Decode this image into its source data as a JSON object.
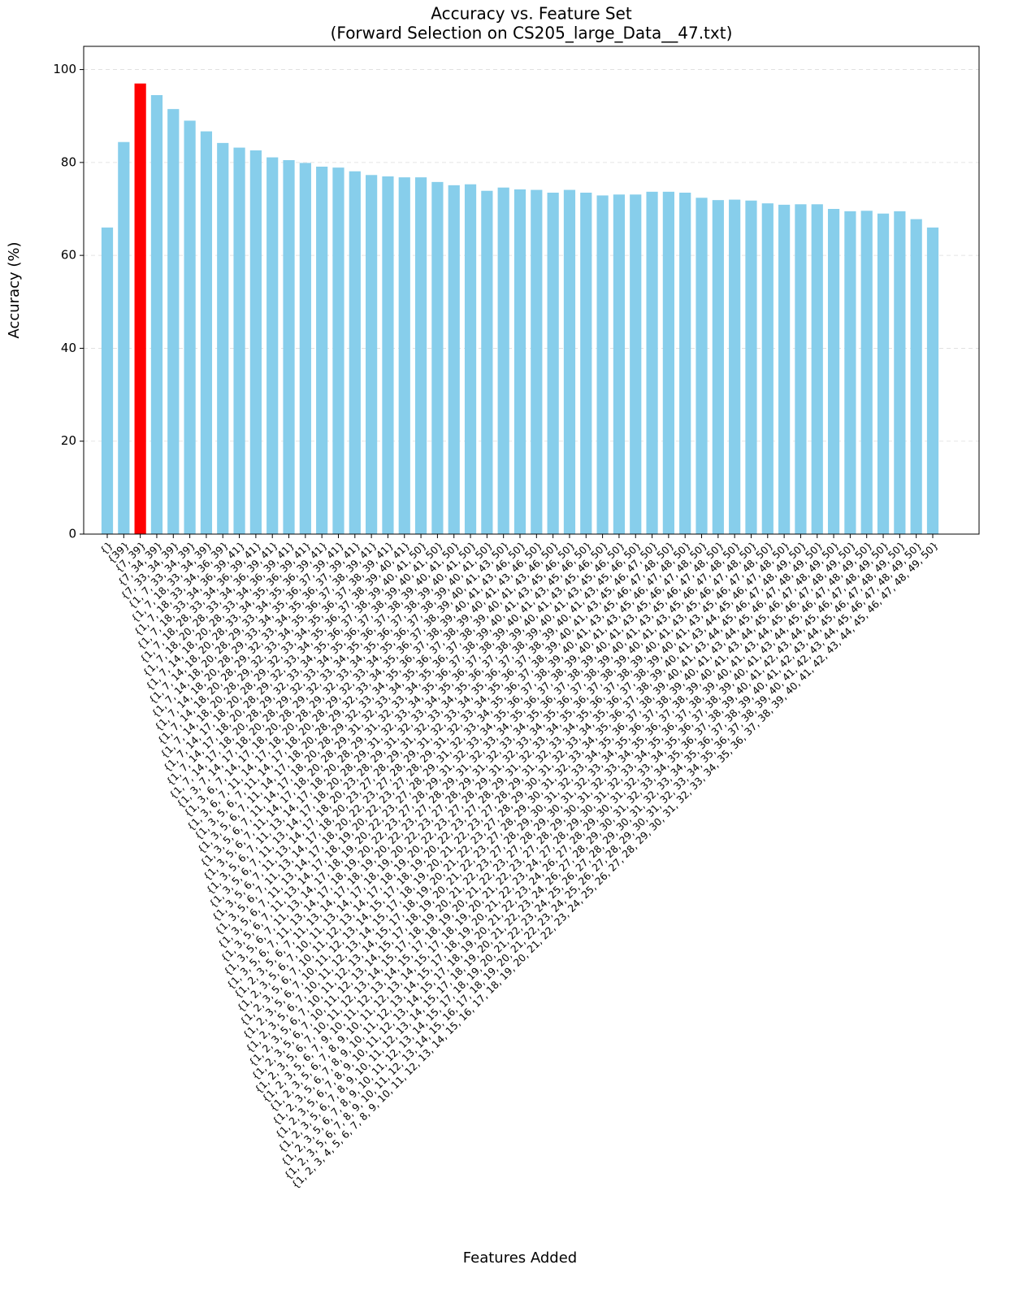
{
  "chart_data": {
    "type": "bar",
    "title": "Accuracy vs. Feature Set",
    "subtitle": "(Forward Selection on CS205_large_Data__47.txt)",
    "xlabel": "Features Added",
    "ylabel": "Accuracy (%)",
    "ylim": [
      0,
      105
    ],
    "yticks": [
      0,
      20,
      40,
      60,
      80,
      100
    ],
    "grid": true,
    "categories": [
      "{}",
      "{39}",
      "{7, 39}",
      "{7, 34, 39}",
      "{7, 33, 34, 39}",
      "{1, 7, 33, 34, 39}",
      "{1, 7, 18, 33, 34, 39}",
      "{1, 7, 18, 33, 34, 36, 39}",
      "{1, 7, 18, 33, 34, 36, 39, 41}",
      "{1, 7, 18, 28, 33, 34, 36, 39, 41}",
      "{1, 7, 18, 20, 28, 33, 34, 36, 39, 41}",
      "{1, 7, 14, 18, 20, 28, 33, 34, 36, 39, 41}",
      "{1, 7, 14, 18, 20, 28, 33, 34, 35, 36, 39, 41}",
      "{1, 7, 14, 18, 20, 28, 29, 33, 34, 35, 36, 39, 41}",
      "{1, 7, 14, 18, 20, 28, 29, 33, 34, 35, 36, 37, 39, 41}",
      "{1, 7, 14, 18, 20, 28, 29, 32, 33, 34, 35, 36, 37, 39, 41}",
      "{1, 7, 14, 18, 20, 28, 29, 32, 33, 34, 35, 36, 37, 38, 39, 41}",
      "{1, 7, 14, 17, 18, 20, 28, 29, 32, 33, 34, 35, 36, 37, 38, 39, 41}",
      "{1, 7, 14, 17, 18, 20, 28, 29, 32, 33, 34, 35, 36, 37, 38, 39, 40, 41}",
      "{1, 7, 14, 17, 18, 20, 28, 29, 32, 33, 34, 35, 36, 37, 38, 39, 40, 41, 50}",
      "{1, 3, 7, 14, 17, 18, 20, 28, 29, 32, 33, 34, 35, 36, 37, 38, 39, 40, 41, 50}",
      "{1, 3, 6, 7, 14, 17, 18, 20, 28, 29, 32, 33, 34, 35, 36, 37, 38, 39, 40, 41, 50}",
      "{1, 3, 6, 7, 11, 14, 17, 18, 20, 28, 29, 32, 33, 34, 35, 36, 37, 38, 39, 40, 41, 50}",
      "{1, 3, 5, 6, 7, 11, 14, 17, 18, 20, 28, 29, 32, 33, 34, 35, 36, 37, 38, 39, 40, 41, 50}",
      "{1, 3, 5, 6, 7, 11, 14, 17, 18, 20, 28, 29, 32, 33, 34, 35, 36, 37, 38, 39, 40, 41, 43, 50}",
      "{1, 3, 5, 6, 7, 11, 14, 17, 18, 20, 28, 29, 32, 33, 34, 35, 36, 37, 38, 39, 40, 41, 43, 46, 50}",
      "{1, 3, 5, 6, 7, 11, 14, 17, 18, 20, 28, 29, 31, 32, 33, 34, 35, 36, 37, 38, 39, 40, 41, 43, 46, 50}",
      "{1, 3, 5, 6, 7, 11, 13, 14, 17, 18, 20, 28, 29, 31, 32, 33, 34, 35, 36, 37, 38, 39, 40, 41, 43, 46, 50}",
      "{1, 3, 5, 6, 7, 11, 13, 14, 17, 18, 20, 28, 29, 31, 32, 33, 34, 35, 36, 37, 38, 39, 40, 41, 43, 45, 46, 50}",
      "{1, 3, 5, 6, 7, 11, 13, 14, 17, 18, 20, 23, 28, 29, 31, 32, 33, 34, 35, 36, 37, 38, 39, 40, 41, 43, 45, 46, 50}",
      "{1, 3, 5, 6, 7, 11, 13, 14, 17, 18, 20, 23, 27, 28, 29, 31, 32, 33, 34, 35, 36, 37, 38, 39, 40, 41, 43, 45, 46, 50}",
      "{1, 3, 5, 6, 7, 11, 13, 14, 17, 18, 20, 22, 23, 27, 28, 29, 31, 32, 33, 34, 35, 36, 37, 38, 39, 40, 41, 43, 45, 46, 50}",
      "{1, 3, 5, 6, 7, 11, 13, 14, 17, 18, 19, 20, 22, 23, 27, 28, 29, 31, 32, 33, 34, 35, 36, 37, 38, 39, 40, 41, 43, 45, 46, 50}",
      "{1, 3, 5, 6, 7, 11, 13, 14, 17, 18, 19, 20, 22, 23, 27, 28, 29, 31, 32, 33, 34, 35, 36, 37, 38, 39, 40, 41, 43, 45, 46, 47, 50}",
      "{1, 3, 5, 6, 7, 11, 13, 14, 17, 18, 19, 20, 22, 23, 27, 28, 29, 31, 32, 33, 34, 35, 36, 37, 38, 39, 40, 41, 43, 45, 46, 47, 48, 50}",
      "{1, 2, 3, 5, 6, 7, 11, 13, 14, 17, 18, 19, 20, 22, 23, 27, 28, 29, 31, 32, 33, 34, 35, 36, 37, 38, 39, 40, 41, 43, 45, 46, 47, 48, 50}",
      "{1, 2, 3, 5, 6, 7, 10, 11, 13, 14, 17, 18, 19, 20, 22, 23, 27, 28, 29, 31, 32, 33, 34, 35, 36, 37, 38, 39, 40, 41, 43, 45, 46, 47, 48, 50}",
      "{1, 2, 3, 5, 6, 7, 10, 11, 12, 13, 14, 17, 18, 19, 20, 22, 23, 27, 28, 29, 31, 32, 33, 34, 35, 36, 37, 38, 39, 40, 41, 43, 45, 46, 47, 48, 50}",
      "{1, 2, 3, 5, 6, 7, 10, 11, 12, 13, 14, 15, 17, 18, 19, 20, 22, 23, 27, 28, 29, 31, 32, 33, 34, 35, 36, 37, 38, 39, 40, 41, 43, 45, 46, 47, 48, 50}",
      "{1, 2, 3, 5, 6, 7, 10, 11, 12, 13, 14, 15, 17, 18, 19, 20, 21, 22, 23, 27, 28, 29, 31, 32, 33, 34, 35, 36, 37, 38, 39, 40, 41, 43, 45, 46, 47, 48, 50}",
      "{1, 2, 3, 5, 6, 7, 10, 11, 12, 13, 14, 15, 17, 18, 19, 20, 21, 22, 23, 27, 28, 29, 30, 31, 32, 33, 34, 35, 36, 37, 38, 39, 40, 41, 43, 45, 46, 47, 48, 50}",
      "{1, 2, 3, 5, 6, 7, 10, 11, 12, 13, 14, 15, 17, 18, 19, 20, 21, 22, 23, 27, 28, 29, 30, 31, 32, 33, 34, 35, 36, 37, 38, 39, 40, 41, 43, 44, 45, 46, 47, 48, 50}",
      "{1, 2, 3, 5, 6, 7, 10, 11, 12, 13, 14, 15, 17, 18, 19, 20, 21, 22, 23, 27, 28, 29, 30, 31, 32, 33, 34, 35, 36, 37, 38, 39, 40, 41, 43, 44, 45, 46, 47, 48, 49, 50}",
      "{1, 2, 3, 5, 6, 7, 9, 10, 11, 12, 13, 14, 15, 17, 18, 19, 20, 21, 22, 23, 27, 28, 29, 30, 31, 32, 33, 34, 35, 36, 37, 38, 39, 40, 41, 43, 44, 45, 46, 47, 48, 49, 50}",
      "{1, 2, 3, 5, 6, 7, 8, 9, 10, 11, 12, 13, 14, 15, 17, 18, 19, 20, 21, 22, 23, 27, 28, 29, 30, 31, 32, 33, 34, 35, 36, 37, 38, 39, 40, 41, 43, 44, 45, 46, 47, 48, 49, 50}",
      "{1, 2, 3, 5, 6, 7, 8, 9, 10, 11, 12, 13, 14, 15, 17, 18, 19, 20, 21, 22, 23, 24, 27, 28, 29, 30, 31, 32, 33, 34, 35, 36, 37, 38, 39, 40, 41, 43, 44, 45, 46, 47, 48, 49, 50}",
      "{1, 2, 3, 5, 6, 7, 8, 9, 10, 11, 12, 13, 14, 15, 17, 18, 19, 20, 21, 22, 23, 24, 26, 27, 28, 29, 30, 31, 32, 33, 34, 35, 36, 37, 38, 39, 40, 41, 43, 44, 45, 46, 47, 48, 49, 50}",
      "{1, 2, 3, 5, 6, 7, 8, 9, 10, 11, 12, 13, 14, 15, 17, 18, 19, 20, 21, 22, 23, 24, 26, 27, 28, 29, 30, 31, 32, 33, 34, 35, 36, 37, 38, 39, 40, 41, 42, 43, 44, 45, 46, 47, 48, 49, 50}",
      "{1, 2, 3, 5, 6, 7, 8, 9, 10, 11, 12, 13, 14, 15, 17, 18, 19, 20, 21, 22, 23, 24, 25, 26, 27, 28, 29, 30, 31, 32, 33, 34, 35, 36, 37, 38, 39, 40, 41, 42, 43, 44, 45, 46, 47, 48, 49, 50}",
      "{1, 2, 3, 5, 6, 7, 8, 9, 10, 11, 12, 13, 14, 15, 16, 17, 18, 19, 20, 21, 22, 23, 24, 25, 26, 27, 28, 29, 30, 31, 32, 33, 34, 35, 36, 37, 38, 39, 40, 41, 42, 43, 44, 45, 46, 47, 48, 49, 50}",
      "{1, 2, 3, 4, 5, 6, 7, 8, 9, 10, 11, 12, 13, 14, 15, 16, 17, 18, 19, 20, 21, 22, 23, 24, 25, 26, 27, 28, 29, 30, 31, 32, 33, 34, 35, 36, 37, 38, 39, 40, 41, 42, 43, 44, 45, 46, 47, 48, 49, 50}"
    ],
    "values": [
      66.0,
      84.4,
      97.0,
      94.5,
      91.5,
      89.0,
      86.7,
      84.2,
      83.2,
      82.6,
      81.1,
      80.5,
      79.9,
      79.1,
      78.9,
      78.1,
      77.3,
      77.0,
      76.8,
      76.8,
      75.8,
      75.1,
      75.3,
      73.9,
      74.6,
      74.2,
      74.1,
      73.5,
      74.1,
      73.5,
      72.9,
      73.1,
      73.1,
      73.7,
      73.7,
      73.5,
      72.4,
      71.9,
      72.0,
      71.8,
      71.2,
      70.9,
      71.0,
      71.0,
      70.0,
      69.5,
      69.6,
      69.0,
      69.5,
      67.8,
      66.0
    ],
    "colors": [
      "#87ceeb",
      "#87ceeb",
      "#ff0000",
      "#87ceeb",
      "#87ceeb",
      "#87ceeb",
      "#87ceeb",
      "#87ceeb",
      "#87ceeb",
      "#87ceeb",
      "#87ceeb",
      "#87ceeb",
      "#87ceeb",
      "#87ceeb",
      "#87ceeb",
      "#87ceeb",
      "#87ceeb",
      "#87ceeb",
      "#87ceeb",
      "#87ceeb",
      "#87ceeb",
      "#87ceeb",
      "#87ceeb",
      "#87ceeb",
      "#87ceeb",
      "#87ceeb",
      "#87ceeb",
      "#87ceeb",
      "#87ceeb",
      "#87ceeb",
      "#87ceeb",
      "#87ceeb",
      "#87ceeb",
      "#87ceeb",
      "#87ceeb",
      "#87ceeb",
      "#87ceeb",
      "#87ceeb",
      "#87ceeb",
      "#87ceeb",
      "#87ceeb",
      "#87ceeb",
      "#87ceeb",
      "#87ceeb",
      "#87ceeb",
      "#87ceeb",
      "#87ceeb",
      "#87ceeb",
      "#87ceeb",
      "#87ceeb",
      "#87ceeb"
    ]
  }
}
